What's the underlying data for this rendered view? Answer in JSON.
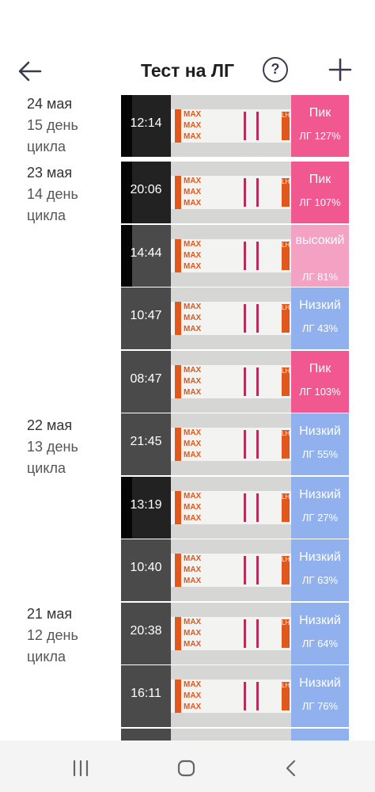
{
  "header": {
    "title": "Тест на ЛГ",
    "help_label": "?"
  },
  "days": [
    {
      "date": "24 мая",
      "cycle_day": "15 день цикла"
    },
    {
      "date": "23 мая",
      "cycle_day": "14 день цикла"
    },
    {
      "date": "22 мая",
      "cycle_day": "13 день цикла"
    },
    {
      "date": "21 мая",
      "cycle_day": "12 день цикла"
    }
  ],
  "strip_text": {
    "max": "MAX",
    "lh": "LH"
  },
  "tests": [
    {
      "time": "12:14",
      "level": "Пик",
      "percent": "ЛГ 127%",
      "status": "peak"
    },
    {
      "time": "20:06",
      "level": "Пик",
      "percent": "ЛГ 107%",
      "status": "peak"
    },
    {
      "time": "14:44",
      "level": "высокий",
      "percent": "ЛГ 81%",
      "status": "high"
    },
    {
      "time": "10:47",
      "level": "Низкий",
      "percent": "ЛГ 43%",
      "status": "low"
    },
    {
      "time": "08:47",
      "level": "Пик",
      "percent": "ЛГ 103%",
      "status": "peak"
    },
    {
      "time": "21:45",
      "level": "Низкий",
      "percent": "ЛГ 55%",
      "status": "low"
    },
    {
      "time": "13:19",
      "level": "Низкий",
      "percent": "ЛГ 27%",
      "status": "low"
    },
    {
      "time": "10:40",
      "level": "Низкий",
      "percent": "ЛГ 63%",
      "status": "low"
    },
    {
      "time": "20:38",
      "level": "Низкий",
      "percent": "ЛГ 64%",
      "status": "low"
    },
    {
      "time": "16:11",
      "level": "Низкий",
      "percent": "ЛГ 76%",
      "status": "low"
    }
  ],
  "colors": {
    "peak": "#f0588f",
    "high": "#f3a2c4",
    "low": "#91b1ee",
    "strip_accent": "#e2571c"
  }
}
